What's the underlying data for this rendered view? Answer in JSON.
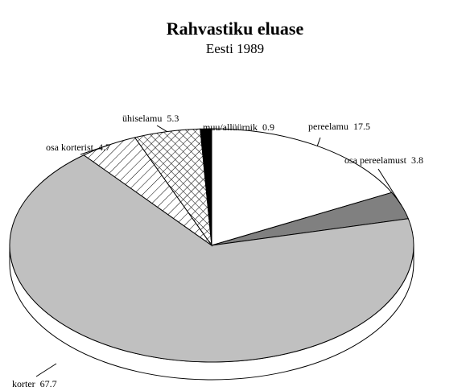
{
  "chart_data": {
    "type": "pie3d",
    "title": "Rahvastiku eluase",
    "subtitle": "Eesti 1989",
    "categories": [
      "pereelamu",
      "osa pereelamust",
      "korter",
      "osa korterist",
      "ühiselamu",
      "muu/allüürnik"
    ],
    "values": [
      17.5,
      3.8,
      67.7,
      4.7,
      5.3,
      0.9
    ],
    "colors": [
      "#ffffff",
      "#808080",
      "#c0c0c0",
      "#ffffff",
      "#ffffff",
      "#000000"
    ],
    "patterns": [
      "solid",
      "solid",
      "solid",
      "diagonal",
      "cross",
      "solid"
    ]
  }
}
